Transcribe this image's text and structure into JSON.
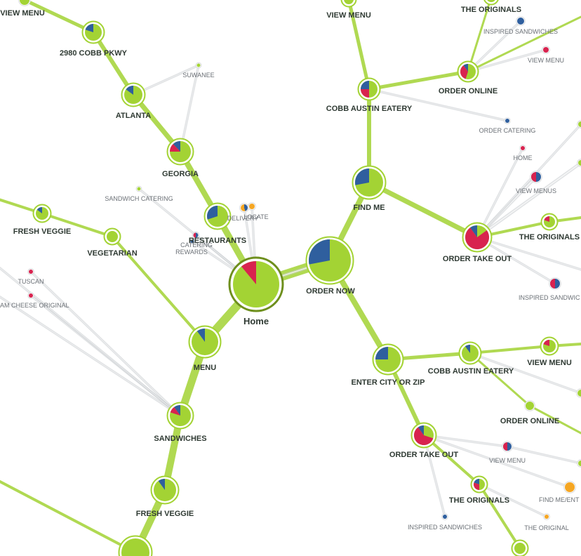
{
  "colors": {
    "link": "#a3d334",
    "link_minor": "#c8cccf",
    "node_fill": "#a3d334",
    "node_ring": "#a3d334",
    "node_dark_ring": "#6e8f1d",
    "blue": "#2f5f9e",
    "red": "#d8234f",
    "orange": "#f5a623",
    "text": "#2f3a33",
    "text_minor": "#6b7076"
  },
  "home": {
    "label": "Home",
    "segments": {
      "red": 0.11
    }
  },
  "labels": {
    "view_menu_top_left": "VIEW MENU",
    "cobb_pkwy": "2980 COBB PKWY",
    "atlanta": "ATLANTA",
    "suwanee": "SUWANEE",
    "georgia": "GEORGIA",
    "sandwich_catering": "SANDWICH CATERING",
    "delivery": "DELIVERY",
    "locate": "LOCATE",
    "restaurants": "RESTAURANTS",
    "catering_rewards_1": "CATERING",
    "catering_rewards_2": "REWARDS",
    "fresh_veggie_left": "FRESH VEGGIE",
    "vegetarian": "VEGETARIAN",
    "tuscan": "TUSCAN",
    "ham_cheese": "AM CHEESE ORIGINAL",
    "menu": "MENU",
    "sandwiches": "SANDWICHES",
    "fresh_veggie_bottom": "FRESH VEGGIE",
    "view_menu_top_mid": "VIEW MENU",
    "originals_top": "THE ORIGINALS",
    "inspired_top": "INSPIRED SANDWICHES",
    "view_menu_top_right": "VIEW MENU",
    "order_online_top": "ORDER ONLINE",
    "cobb_austin_top": "COBB AUSTIN EATERY",
    "order_catering": "ORDER CATERING",
    "home_minor": "HOME",
    "find_me": "FIND ME",
    "view_menus": "VIEW MENUS",
    "originals_right": "THE ORIGINALS",
    "order_take_out_right": "ORDER TAKE OUT",
    "inspired_right": "INSPIRED SANDWIC",
    "order_now": "ORDER NOW",
    "enter_city": "ENTER CITY OR ZIP",
    "cobb_austin_mid": "COBB AUSTIN EATERY",
    "view_menu_mid": "VIEW MENU",
    "order_online_mid": "ORDER ONLINE",
    "order_take_out_bottom": "ORDER TAKE OUT",
    "view_menu_bottom": "VIEW MENU",
    "originals_bottom": "THE ORIGINALS",
    "find_me_ent": "FIND ME/ENT",
    "inspired_bottom": "INSPIRED SANDWICHES",
    "the_original": "THE ORIGINAL"
  }
}
